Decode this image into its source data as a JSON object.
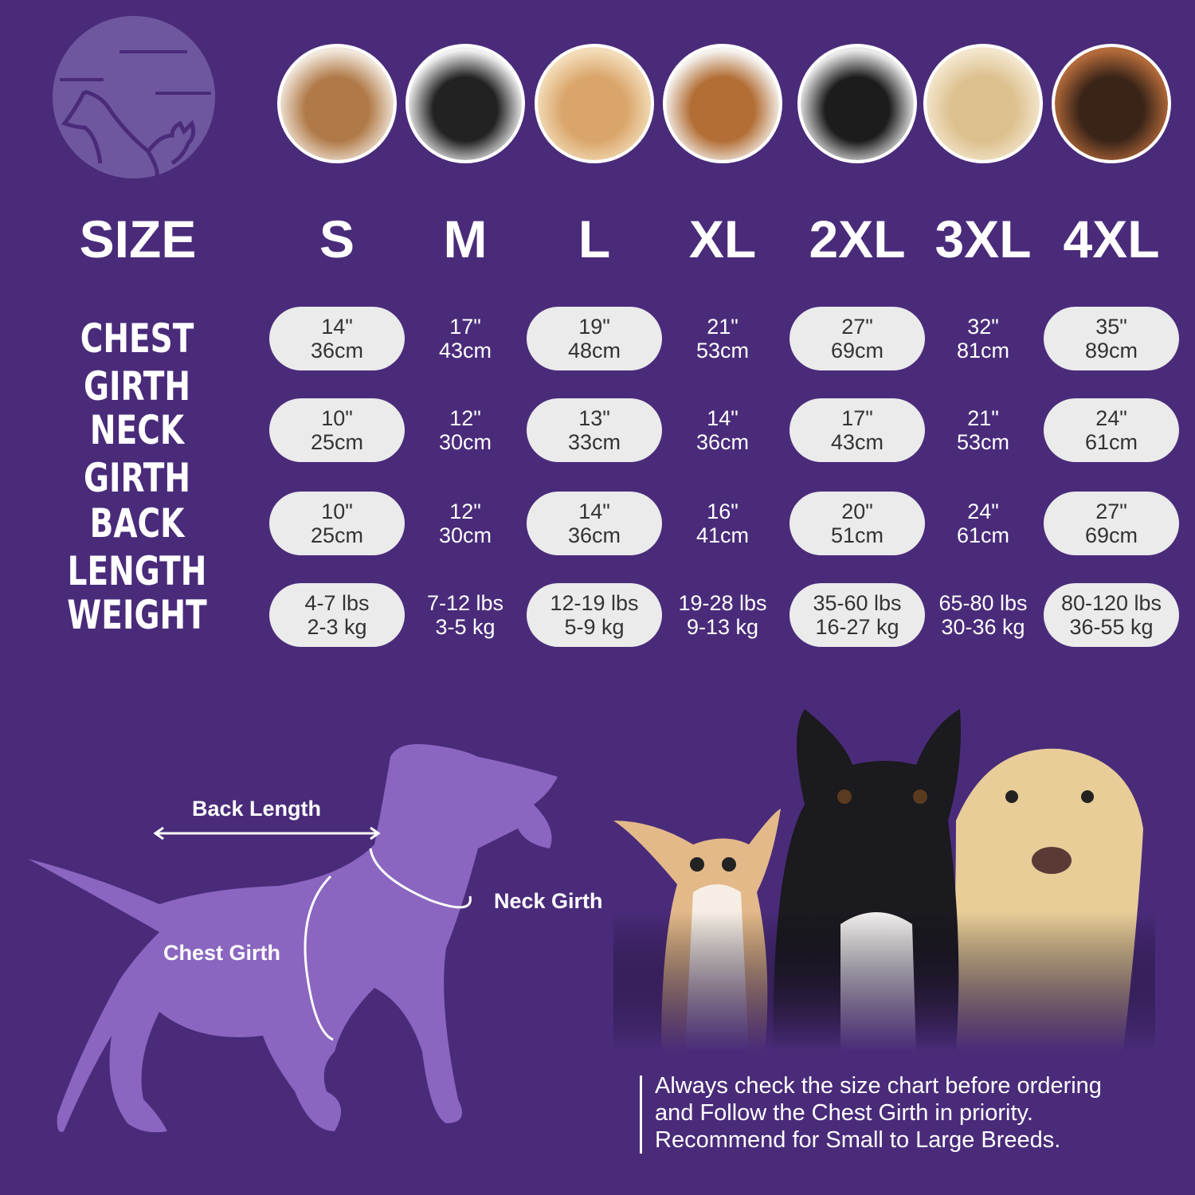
{
  "colors": {
    "background": "#4a2b7a",
    "pill": "#ebebeb",
    "silhouette": "#8a66c0",
    "logo": "#6f579f"
  },
  "logo": {
    "icon": "dog-cat-logo-icon"
  },
  "breed_photos": [
    "shih-tzu",
    "boston-terrier",
    "cocker-spaniel",
    "beagle",
    "border-collie",
    "labrador",
    "doberman"
  ],
  "header_label": "SIZE",
  "sizes": [
    "S",
    "M",
    "L",
    "XL",
    "2XL",
    "3XL",
    "4XL"
  ],
  "rows": [
    {
      "label": "CHEST GIRTH",
      "values": [
        [
          "14\"",
          "36cm"
        ],
        [
          "17\"",
          "43cm"
        ],
        [
          "19\"",
          "48cm"
        ],
        [
          "21\"",
          "53cm"
        ],
        [
          "27\"",
          "69cm"
        ],
        [
          "32\"",
          "81cm"
        ],
        [
          "35\"",
          "89cm"
        ]
      ]
    },
    {
      "label": "NECK GIRTH",
      "values": [
        [
          "10\"",
          "25cm"
        ],
        [
          "12\"",
          "30cm"
        ],
        [
          "13\"",
          "33cm"
        ],
        [
          "14\"",
          "36cm"
        ],
        [
          "17\"",
          "43cm"
        ],
        [
          "21\"",
          "53cm"
        ],
        [
          "24\"",
          "61cm"
        ]
      ]
    },
    {
      "label": "BACK LENGTH",
      "values": [
        [
          "10\"",
          "25cm"
        ],
        [
          "12\"",
          "30cm"
        ],
        [
          "14\"",
          "36cm"
        ],
        [
          "16\"",
          "41cm"
        ],
        [
          "20\"",
          "51cm"
        ],
        [
          "24\"",
          "61cm"
        ],
        [
          "27\"",
          "69cm"
        ]
      ]
    },
    {
      "label": "WEIGHT",
      "values": [
        [
          "4-7 lbs",
          "2-3 kg"
        ],
        [
          "7-12 lbs",
          "3-5 kg"
        ],
        [
          "12-19 lbs",
          "5-9 kg"
        ],
        [
          "19-28 lbs",
          "9-13 kg"
        ],
        [
          "35-60 lbs",
          "16-27 kg"
        ],
        [
          "65-80 lbs",
          "30-36 kg"
        ],
        [
          "80-120 lbs",
          "36-55 kg"
        ]
      ]
    }
  ],
  "diagram": {
    "back_length": "Back Length",
    "neck_girth": "Neck Girth",
    "chest_girth": "Chest Girth"
  },
  "note": {
    "lines": [
      "Always check the size chart before ordering",
      "and Follow the Chest Girth in priority.",
      "Recommend for Small to Large Breeds."
    ]
  }
}
